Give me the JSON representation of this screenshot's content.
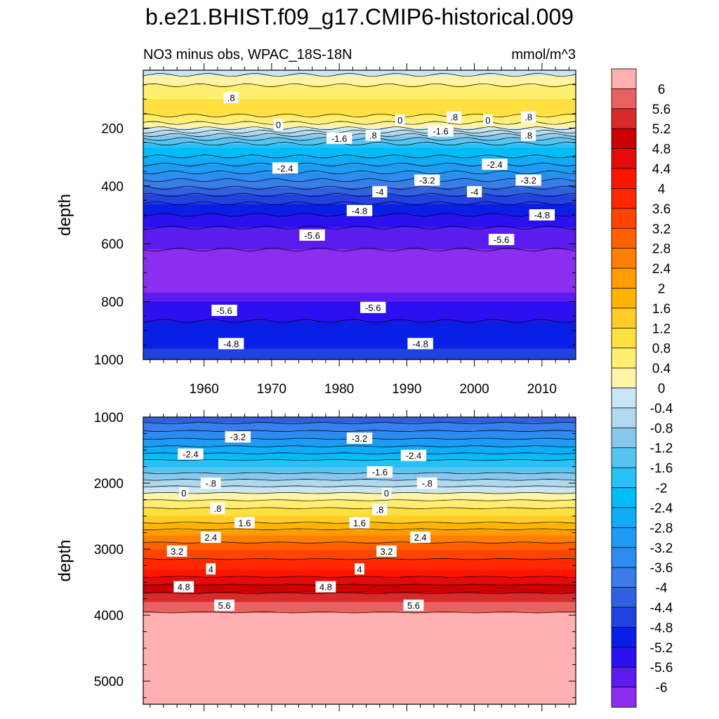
{
  "figure": {
    "title": "b.e21.BHIST.f09_g17.CMIP6-historical.009",
    "subtitle_left": "NO3 minus obs, WPAC_18S-18N",
    "subtitle_right": "mmol/m^3"
  },
  "colors": {
    "levels": [
      -6,
      -5.6,
      -5.2,
      -4.8,
      -4.4,
      -4,
      -3.6,
      -3.2,
      -2.8,
      -2.4,
      -2,
      -1.6,
      -1.2,
      -0.8,
      -0.4,
      0,
      0.4,
      0.8,
      1.2,
      1.6,
      2,
      2.4,
      2.8,
      3.2,
      3.6,
      4,
      4.4,
      4.8,
      5.2,
      5.6,
      6
    ],
    "fill": [
      "#8c2ef0",
      "#5c1cf0",
      "#2b10f0",
      "#0a1fe6",
      "#2242e0",
      "#3060e0",
      "#3a7ce8",
      "#2c8cf0",
      "#1e9cf5",
      "#10acf8",
      "#00bcf8",
      "#28c0f5",
      "#58c4f2",
      "#88c8ee",
      "#b0d8ef",
      "#c8e6f4",
      "#fff4a8",
      "#ffee70",
      "#ffe040",
      "#ffcc28",
      "#ffb400",
      "#ff9c00",
      "#ff8000",
      "#ff6000",
      "#ff4400",
      "#ff2800",
      "#ff1400",
      "#e60a0a",
      "#cc0000",
      "#d82a2a",
      "#e86262",
      "#ffb0b0"
    ]
  },
  "colorbar": {
    "labels": [
      "6",
      "5.6",
      "5.2",
      "4.8",
      "4.4",
      "4",
      "3.6",
      "3.2",
      "2.8",
      "2.4",
      "2",
      "1.6",
      "1.2",
      "0.8",
      "0.4",
      "0",
      "-0.4",
      "-0.8",
      "-1.2",
      "-1.6",
      "-2",
      "-2.4",
      "-2.8",
      "-3.2",
      "-3.6",
      "-4",
      "-4.4",
      "-4.8",
      "-5.2",
      "-5.6",
      "-6"
    ]
  },
  "chart_data": [
    {
      "type": "heatmap",
      "panel": "upper",
      "ylabel": "depth",
      "y_reversed": true,
      "ylim": [
        0,
        1000
      ],
      "xlim": [
        1951,
        2015
      ],
      "xticks": [
        1960,
        1970,
        1980,
        1990,
        2000,
        2010
      ],
      "xtick_labels": [
        "1960",
        "1970",
        "1980",
        "1990",
        "2000",
        "2010"
      ],
      "yticks": [
        200,
        400,
        600,
        800,
        1000
      ],
      "ytick_labels": [
        "200",
        "400",
        "600",
        "800",
        "1000"
      ],
      "depth_profile": [
        {
          "depth": 0,
          "value": -0.2
        },
        {
          "depth": 40,
          "value": 0.3
        },
        {
          "depth": 100,
          "value": 0.8
        },
        {
          "depth": 150,
          "value": 0.9
        },
        {
          "depth": 195,
          "value": 0.2
        },
        {
          "depth": 230,
          "value": -1.0
        },
        {
          "depth": 270,
          "value": -2.0
        },
        {
          "depth": 340,
          "value": -3.0
        },
        {
          "depth": 400,
          "value": -3.9
        },
        {
          "depth": 450,
          "value": -4.7
        },
        {
          "depth": 520,
          "value": -5.4
        },
        {
          "depth": 580,
          "value": -5.9
        },
        {
          "depth": 700,
          "value": -6.2
        },
        {
          "depth": 770,
          "value": -6.0
        },
        {
          "depth": 800,
          "value": -5.6
        },
        {
          "depth": 850,
          "value": -5.3
        },
        {
          "depth": 900,
          "value": -5.0
        },
        {
          "depth": 960,
          "value": -4.8
        },
        {
          "depth": 1000,
          "value": -4.5
        }
      ],
      "contour_labels": [
        {
          "text": ".8",
          "x": 1964,
          "y": 95
        },
        {
          "text": "0",
          "x": 1971,
          "y": 188
        },
        {
          "text": "-1.6",
          "x": 1980,
          "y": 235
        },
        {
          "text": ".8",
          "x": 1985,
          "y": 225
        },
        {
          "text": "0",
          "x": 1989,
          "y": 172
        },
        {
          "text": "-1.6",
          "x": 1995,
          "y": 210
        },
        {
          "text": ".8",
          "x": 1997,
          "y": 162
        },
        {
          "text": "0",
          "x": 2002,
          "y": 172
        },
        {
          "text": ".8",
          "x": 2008,
          "y": 162
        },
        {
          "text": ".8",
          "x": 2008,
          "y": 225
        },
        {
          "text": "-2.4",
          "x": 1972,
          "y": 338
        },
        {
          "text": "-2.4",
          "x": 2003,
          "y": 325
        },
        {
          "text": "-3.2",
          "x": 1993,
          "y": 380
        },
        {
          "text": "-3.2",
          "x": 2008,
          "y": 380
        },
        {
          "text": "-4",
          "x": 1986,
          "y": 420
        },
        {
          "text": "-4",
          "x": 2000,
          "y": 420
        },
        {
          "text": "-4.8",
          "x": 1983,
          "y": 485
        },
        {
          "text": "-4.8",
          "x": 2010,
          "y": 500
        },
        {
          "text": "-5.6",
          "x": 1976,
          "y": 570
        },
        {
          "text": "-5.6",
          "x": 2004,
          "y": 585
        },
        {
          "text": "-5.6",
          "x": 1963,
          "y": 830
        },
        {
          "text": "-5.6",
          "x": 1985,
          "y": 820
        },
        {
          "text": "-4.8",
          "x": 1964,
          "y": 945
        },
        {
          "text": "-4.8",
          "x": 1992,
          "y": 945
        }
      ]
    },
    {
      "type": "heatmap",
      "panel": "lower",
      "ylabel": "depth",
      "y_reversed": true,
      "ylim": [
        1000,
        5350
      ],
      "xlim": [
        1951,
        2015
      ],
      "xticks": [
        1960,
        1970,
        1980,
        1990,
        2000,
        2010
      ],
      "yticks": [
        1000,
        2000,
        3000,
        4000,
        5000
      ],
      "ytick_labels": [
        "1000",
        "2000",
        "3000",
        "4000",
        "5000"
      ],
      "depth_profile": [
        {
          "depth": 1000,
          "value": -4.3
        },
        {
          "depth": 1300,
          "value": -3.3
        },
        {
          "depth": 1500,
          "value": -2.6
        },
        {
          "depth": 1750,
          "value": -1.6
        },
        {
          "depth": 2000,
          "value": -0.6
        },
        {
          "depth": 2200,
          "value": 0.2
        },
        {
          "depth": 2500,
          "value": 1.2
        },
        {
          "depth": 2800,
          "value": 2.4
        },
        {
          "depth": 3000,
          "value": 3.2
        },
        {
          "depth": 3300,
          "value": 4.0
        },
        {
          "depth": 3600,
          "value": 5.0
        },
        {
          "depth": 3800,
          "value": 5.6
        },
        {
          "depth": 3950,
          "value": 5.9
        },
        {
          "depth": 4000,
          "value": 6.5
        },
        {
          "depth": 5350,
          "value": 6.5
        }
      ],
      "contour_labels": [
        {
          "text": "-3.2",
          "x": 1965,
          "y": 1300
        },
        {
          "text": "-3.2",
          "x": 1983,
          "y": 1320
        },
        {
          "text": "-2.4",
          "x": 1958,
          "y": 1560
        },
        {
          "text": "-2.4",
          "x": 1991,
          "y": 1580
        },
        {
          "text": "-1.6",
          "x": 1986,
          "y": 1830
        },
        {
          "text": "-.8",
          "x": 1961,
          "y": 2000
        },
        {
          "text": "-.8",
          "x": 1993,
          "y": 2000
        },
        {
          "text": "0",
          "x": 1957,
          "y": 2150
        },
        {
          "text": "0",
          "x": 1987,
          "y": 2150
        },
        {
          "text": ".8",
          "x": 1962,
          "y": 2380
        },
        {
          "text": ".8",
          "x": 1986,
          "y": 2400
        },
        {
          "text": "1.6",
          "x": 1966,
          "y": 2600
        },
        {
          "text": "1.6",
          "x": 1983,
          "y": 2600
        },
        {
          "text": "2.4",
          "x": 1961,
          "y": 2820
        },
        {
          "text": "2.4",
          "x": 1992,
          "y": 2820
        },
        {
          "text": "3.2",
          "x": 1956,
          "y": 3030
        },
        {
          "text": "3.2",
          "x": 1987,
          "y": 3030
        },
        {
          "text": "4",
          "x": 1961,
          "y": 3300
        },
        {
          "text": "4",
          "x": 1983,
          "y": 3300
        },
        {
          "text": "4.8",
          "x": 1957,
          "y": 3570
        },
        {
          "text": "4.8",
          "x": 1978,
          "y": 3570
        },
        {
          "text": "5.6",
          "x": 1963,
          "y": 3850
        },
        {
          "text": "5.6",
          "x": 1991,
          "y": 3850
        }
      ]
    }
  ]
}
